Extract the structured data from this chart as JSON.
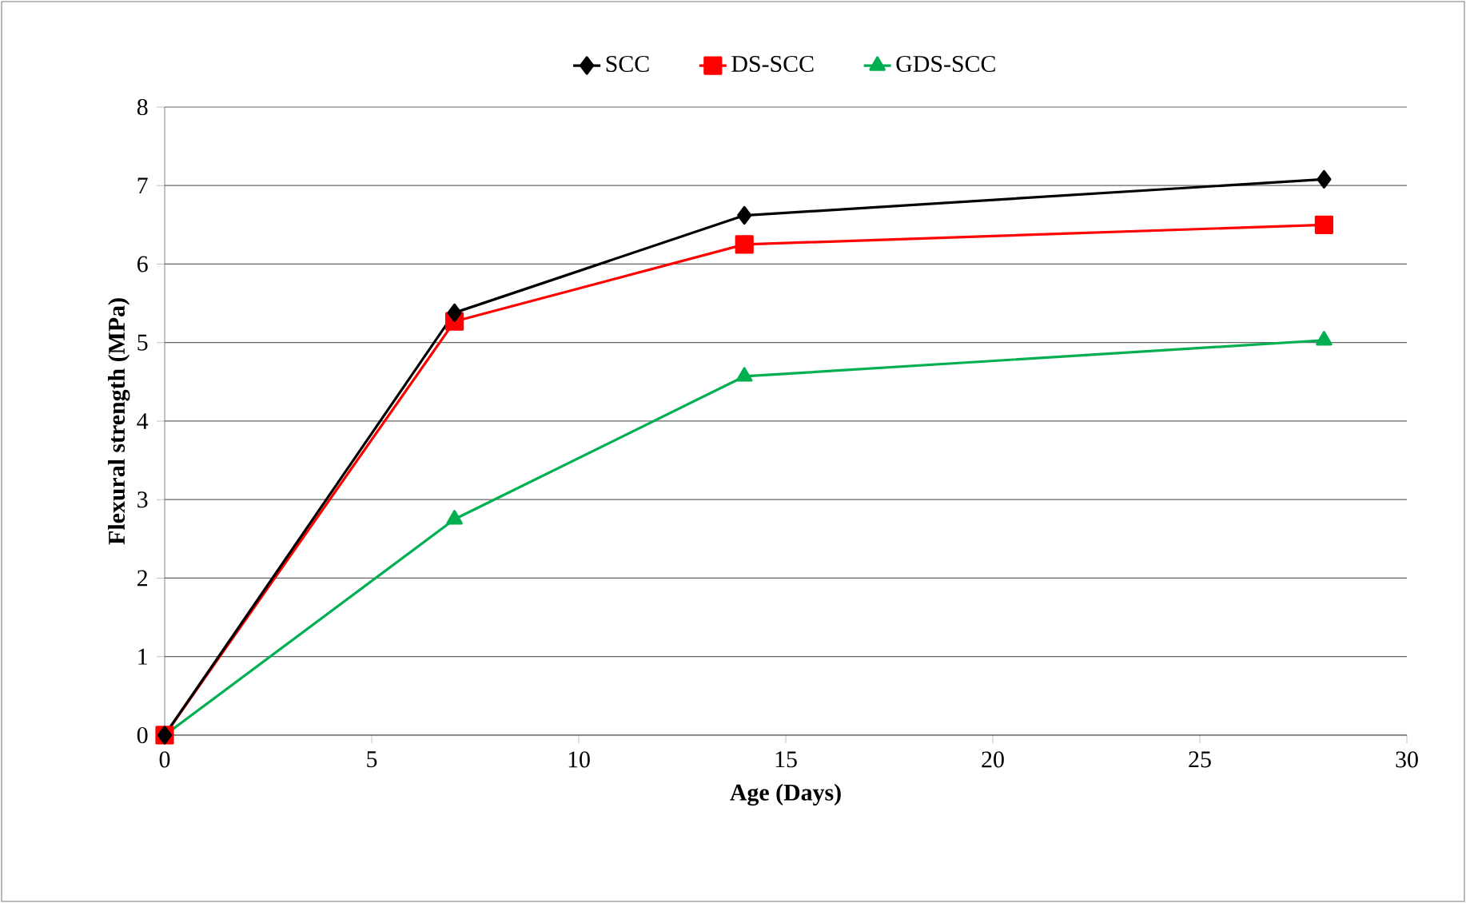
{
  "chart_data": {
    "type": "line",
    "xlabel": "Age (Days)",
    "ylabel": "Flexural strength (MPa)",
    "x": [
      0,
      7,
      14,
      28
    ],
    "series": [
      {
        "name": "SCC",
        "color": "#000000",
        "marker": "diamond",
        "values": [
          0,
          5.38,
          6.62,
          7.08
        ]
      },
      {
        "name": "DS-SCC",
        "color": "#ff0000",
        "marker": "square",
        "values": [
          0,
          5.27,
          6.25,
          6.5
        ]
      },
      {
        "name": "GDS-SCC",
        "color": "#00b050",
        "marker": "triangle",
        "values": [
          0,
          2.75,
          4.57,
          5.03
        ]
      }
    ],
    "xlim": [
      0,
      30
    ],
    "xticks": [
      0,
      5,
      10,
      15,
      20,
      25,
      30
    ],
    "ylim": [
      0,
      8
    ],
    "yticks": [
      0,
      1,
      2,
      3,
      4,
      5,
      6,
      7,
      8
    ],
    "grid": "y",
    "legend": "top",
    "line_style": "solid"
  }
}
